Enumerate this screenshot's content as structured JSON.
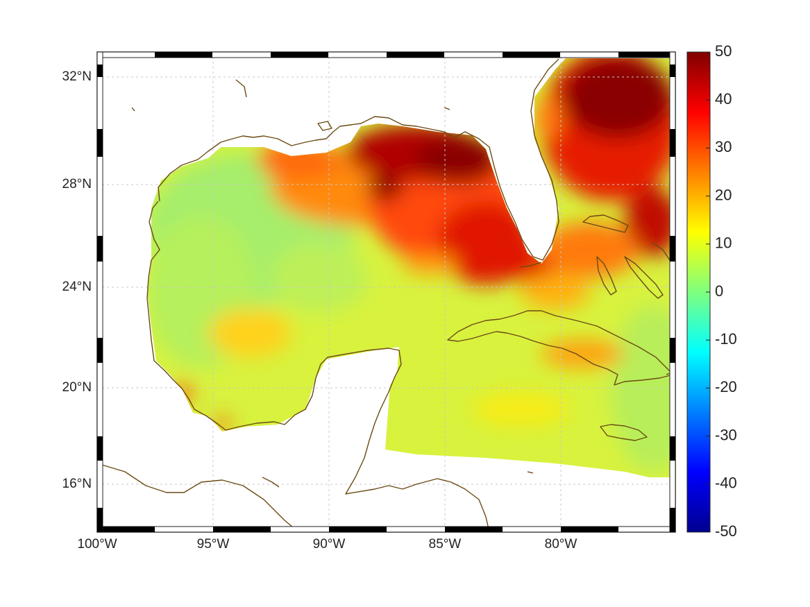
{
  "figure": {
    "type": "map",
    "y_ticks": [
      "32°N",
      "28°N",
      "24°N",
      "20°N",
      "16°N"
    ],
    "x_ticks": [
      "100°W",
      "95°W",
      "90°W",
      "85°W",
      "80°W"
    ],
    "colorbar": {
      "ticks": [
        "50",
        "40",
        "30",
        "20",
        "10",
        "0",
        "-10",
        "-20",
        "-30",
        "-40",
        "-50"
      ],
      "range": [
        -50,
        50
      ],
      "colormap": "jet"
    },
    "colors": {
      "land": "#ffffff",
      "coastline": "#6b4a14",
      "grid": "#c8c8c8",
      "ocean_low": "#a8ee6a",
      "ocean_mid": "#ddf238",
      "ocean_high": "#ff9400",
      "ocean_max": "#820000"
    }
  }
}
